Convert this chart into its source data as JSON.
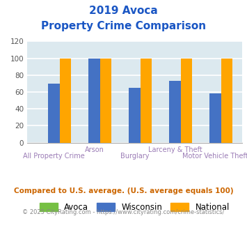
{
  "title_line1": "2019 Avoca",
  "title_line2": "Property Crime Comparison",
  "categories": [
    "All Property Crime",
    "Arson",
    "Burglary",
    "Larceny & Theft",
    "Motor Vehicle Theft"
  ],
  "avoca_values": [
    0,
    0,
    0,
    0,
    0
  ],
  "wisconsin_values": [
    70,
    100,
    65,
    73,
    58
  ],
  "national_values": [
    100,
    100,
    100,
    100,
    100
  ],
  "avoca_color": "#76c043",
  "wisconsin_color": "#4472c4",
  "national_color": "#ffa500",
  "title_color": "#1a56c4",
  "ylim": [
    0,
    120
  ],
  "yticks": [
    0,
    20,
    40,
    60,
    80,
    100,
    120
  ],
  "background_color": "#dce9ef",
  "grid_color": "#ffffff",
  "xlabel_color": "#9b7cb6",
  "legend_labels": [
    "Avoca",
    "Wisconsin",
    "National"
  ],
  "footnote1": "Compared to U.S. average. (U.S. average equals 100)",
  "footnote2": "© 2025 CityRating.com - https://www.cityrating.com/crime-statistics/",
  "footnote1_color": "#cc6600",
  "footnote2_color": "#888888",
  "bar_width": 0.28,
  "label_top": [
    "",
    "Arson",
    "",
    "Larceny & Theft",
    ""
  ],
  "label_bot": [
    "All Property Crime",
    "",
    "Burglary",
    "",
    "Motor Vehicle Theft"
  ]
}
